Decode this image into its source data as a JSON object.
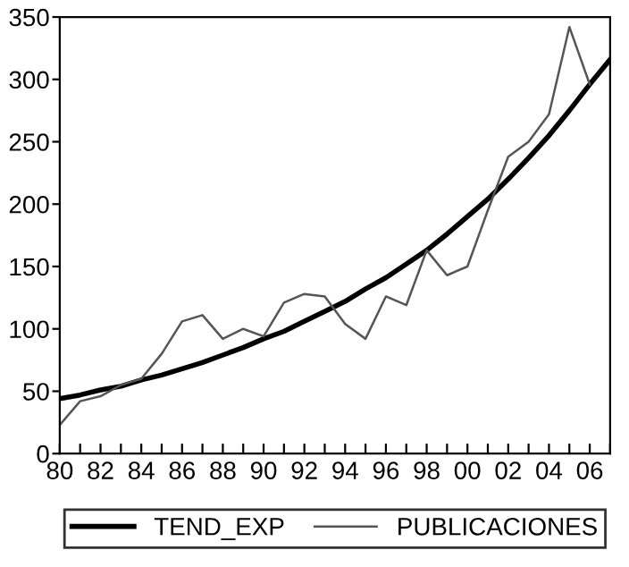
{
  "chart_data": {
    "type": "line",
    "x": [
      1980,
      1981,
      1982,
      1983,
      1984,
      1985,
      1986,
      1987,
      1988,
      1989,
      1990,
      1991,
      1992,
      1993,
      1994,
      1995,
      1996,
      1997,
      1998,
      1999,
      2000,
      2001,
      2002,
      2003,
      2004,
      2005,
      2006,
      2007
    ],
    "series": [
      {
        "name": "TEND_EXP",
        "color": "#000000",
        "values": [
          44,
          47,
          51,
          54,
          59,
          63,
          68,
          73,
          79,
          85,
          92,
          98,
          106,
          114,
          122,
          132,
          141,
          152,
          163,
          176,
          190,
          204,
          220,
          237,
          255,
          275,
          296,
          316
        ]
      },
      {
        "name": "PUBLICACIONES",
        "color": "#555555",
        "values": [
          23,
          42,
          46,
          55,
          60,
          80,
          106,
          111,
          92,
          100,
          94,
          121,
          128,
          126,
          104,
          92,
          126,
          119,
          163,
          143,
          150,
          195,
          238,
          250,
          272,
          342,
          296,
          null
        ]
      }
    ],
    "xlim": [
      1980,
      2007
    ],
    "xticks": [
      {
        "value": 1980,
        "label": "80"
      },
      {
        "value": 1981,
        "label": null
      },
      {
        "value": 1982,
        "label": "82"
      },
      {
        "value": 1983,
        "label": null
      },
      {
        "value": 1984,
        "label": "84"
      },
      {
        "value": 1985,
        "label": null
      },
      {
        "value": 1986,
        "label": "86"
      },
      {
        "value": 1987,
        "label": null
      },
      {
        "value": 1988,
        "label": "88"
      },
      {
        "value": 1989,
        "label": null
      },
      {
        "value": 1990,
        "label": "90"
      },
      {
        "value": 1991,
        "label": null
      },
      {
        "value": 1992,
        "label": "92"
      },
      {
        "value": 1993,
        "label": null
      },
      {
        "value": 1994,
        "label": "94"
      },
      {
        "value": 1995,
        "label": null
      },
      {
        "value": 1996,
        "label": "96"
      },
      {
        "value": 1997,
        "label": null
      },
      {
        "value": 1998,
        "label": "98"
      },
      {
        "value": 1999,
        "label": null
      },
      {
        "value": 2000,
        "label": "00"
      },
      {
        "value": 2001,
        "label": null
      },
      {
        "value": 2002,
        "label": "02"
      },
      {
        "value": 2003,
        "label": null
      },
      {
        "value": 2004,
        "label": "04"
      },
      {
        "value": 2005,
        "label": null
      },
      {
        "value": 2006,
        "label": "06"
      },
      {
        "value": 2007,
        "label": null
      }
    ],
    "ylim": [
      0,
      350
    ],
    "yticks": [
      0,
      50,
      100,
      150,
      200,
      250,
      300,
      350
    ],
    "grid": false,
    "legend": "bottom",
    "marker": "none",
    "line_style": "solid"
  }
}
